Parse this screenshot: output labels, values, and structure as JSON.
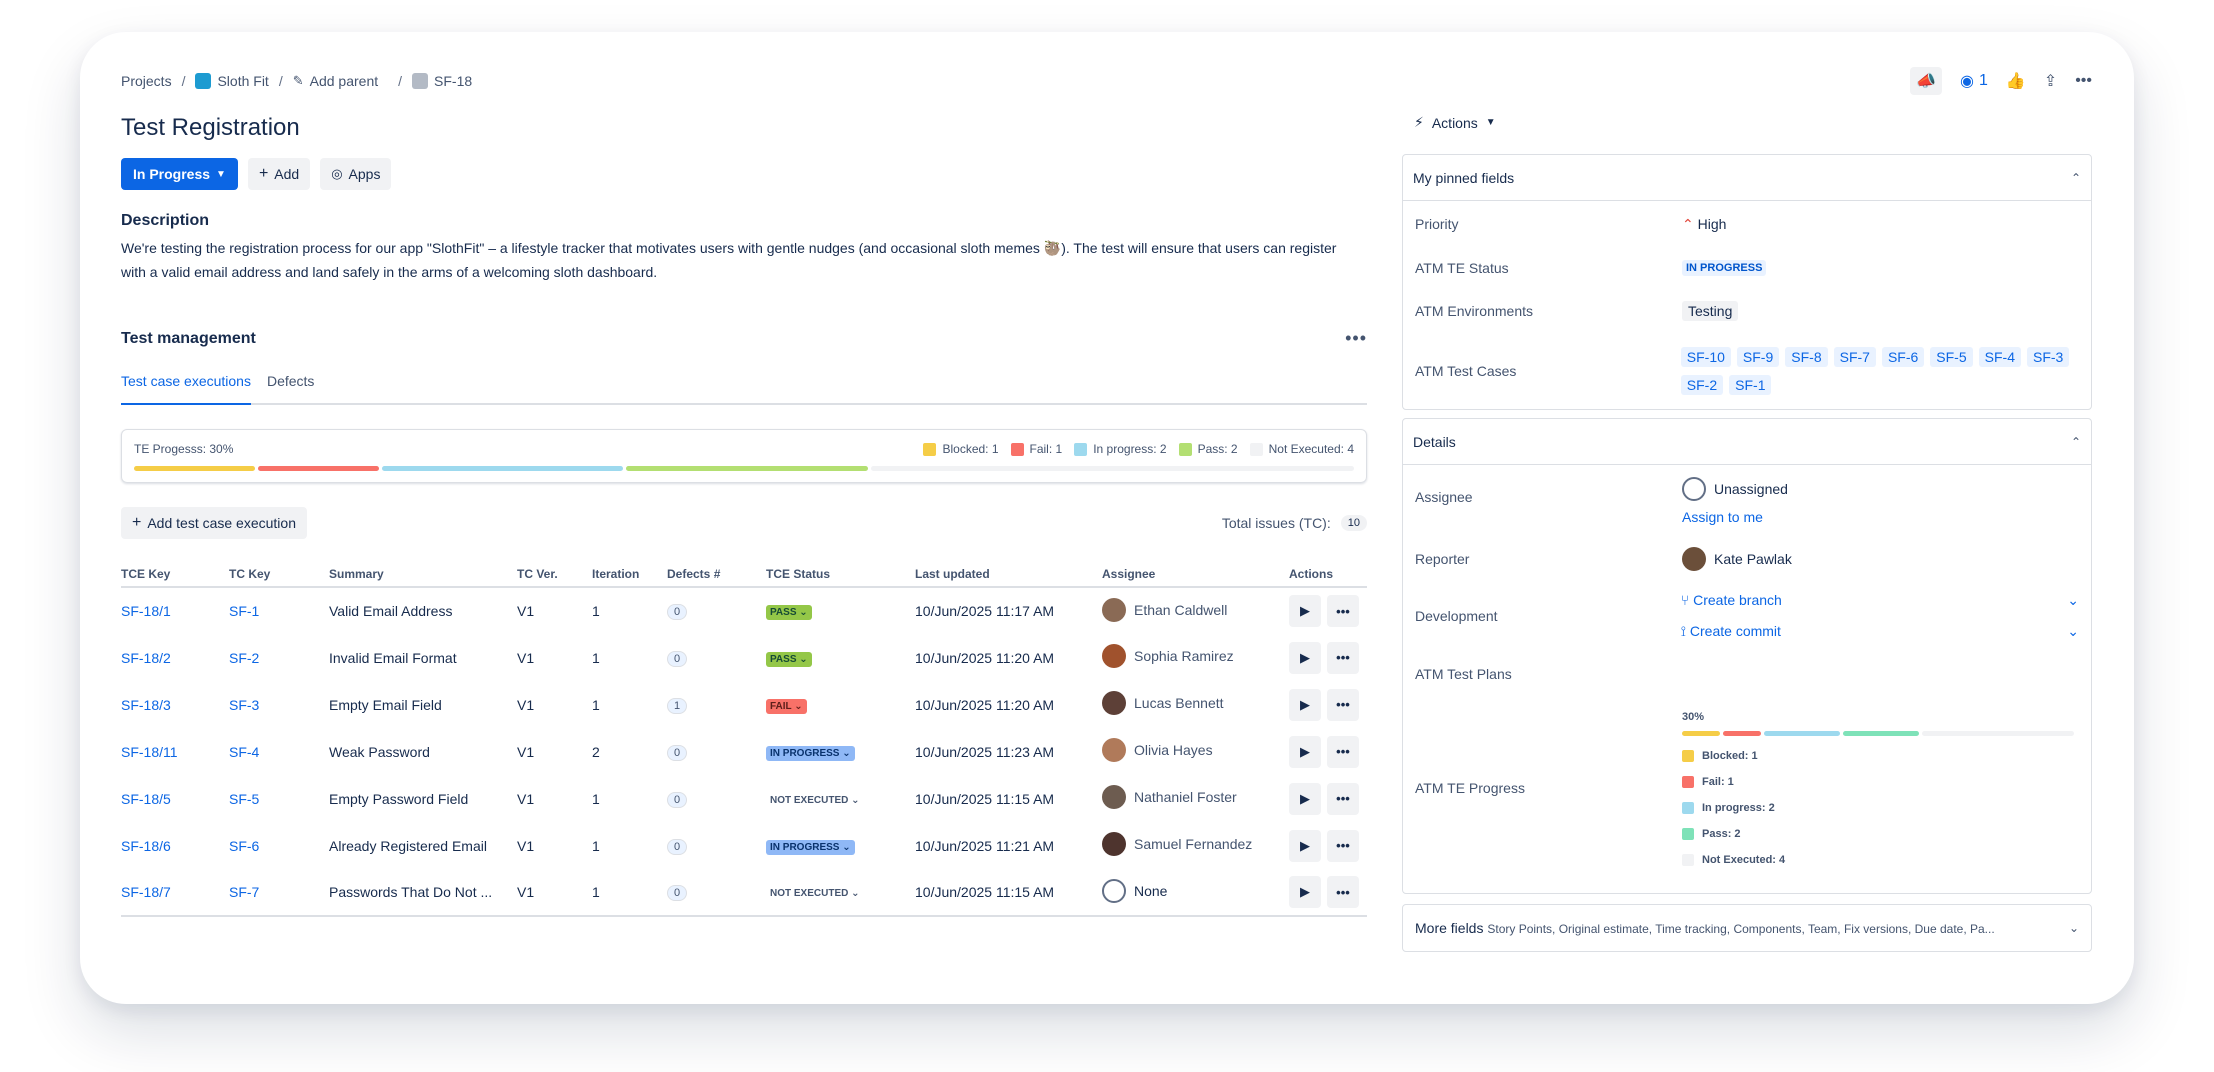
{
  "breadcrumb": {
    "projects": "Projects",
    "project": "Sloth Fit",
    "add_parent": "Add parent",
    "issue": "SF-18"
  },
  "title": "Test Registration",
  "buttons": {
    "status": "In Progress",
    "add": "Add",
    "apps": "Apps"
  },
  "description": {
    "heading": "Description",
    "text": "We're testing the registration process for our app \"SlothFit\" – a lifestyle tracker that motivates users with gentle nudges (and occasional sloth memes 🦥). The test will ensure that users can register with a valid email address and land safely in the arms of a welcoming sloth dashboard."
  },
  "test_management": {
    "title": "Test management",
    "tabs": [
      "Test case executions",
      "Defects"
    ],
    "progress_label": "TE Progesss: 30%",
    "progress_percent": 30,
    "legend": [
      {
        "label": "Blocked: 1",
        "color": "#f5cd47",
        "count": 1
      },
      {
        "label": "Fail: 1",
        "color": "#f87168",
        "count": 1
      },
      {
        "label": "In progress: 2",
        "color": "#9dd9ee",
        "count": 2
      },
      {
        "label": "Pass: 2",
        "color": "#b3df72",
        "count": 2
      },
      {
        "label": "Not Executed: 4",
        "color": "#f1f2f4",
        "count": 4
      }
    ],
    "add_button": "Add test case execution",
    "total_label": "Total issues (TC):",
    "total_count": "10",
    "columns": [
      "TCE Key",
      "TC Key",
      "Summary",
      "TC Ver.",
      "Iteration",
      "Defects #",
      "TCE Status",
      "Last updated",
      "Assignee",
      "Actions"
    ],
    "rows": [
      {
        "tce": "SF-18/1",
        "tc": "SF-1",
        "summary": "Valid Email Address",
        "ver": "V1",
        "iter": "1",
        "defects": "0",
        "status": "PASS",
        "updated": "10/Jun/2025 11:17 AM",
        "assignee": "Ethan Caldwell"
      },
      {
        "tce": "SF-18/2",
        "tc": "SF-2",
        "summary": "Invalid Email Format",
        "ver": "V1",
        "iter": "1",
        "defects": "0",
        "status": "PASS",
        "updated": "10/Jun/2025 11:20 AM",
        "assignee": "Sophia Ramirez"
      },
      {
        "tce": "SF-18/3",
        "tc": "SF-3",
        "summary": "Empty Email Field",
        "ver": "V1",
        "iter": "1",
        "defects": "1",
        "status": "FAIL",
        "updated": "10/Jun/2025 11:20 AM",
        "assignee": "Lucas Bennett"
      },
      {
        "tce": "SF-18/11",
        "tc": "SF-4",
        "summary": "Weak Password",
        "ver": "V1",
        "iter": "2",
        "defects": "0",
        "status": "IN PROGRESS",
        "updated": "10/Jun/2025 11:23 AM",
        "assignee": "Olivia Hayes"
      },
      {
        "tce": "SF-18/5",
        "tc": "SF-5",
        "summary": "Empty Password Field",
        "ver": "V1",
        "iter": "1",
        "defects": "0",
        "status": "NOT EXECUTED",
        "updated": "10/Jun/2025 11:15 AM",
        "assignee": "Nathaniel Foster"
      },
      {
        "tce": "SF-18/6",
        "tc": "SF-6",
        "summary": "Already Registered Email",
        "ver": "V1",
        "iter": "1",
        "defects": "0",
        "status": "IN PROGRESS",
        "updated": "10/Jun/2025 11:21 AM",
        "assignee": "Samuel Fernandez"
      },
      {
        "tce": "SF-18/7",
        "tc": "SF-7",
        "summary": "Passwords That Do Not ...",
        "ver": "V1",
        "iter": "1",
        "defects": "0",
        "status": "NOT EXECUTED",
        "updated": "10/Jun/2025 11:15 AM",
        "assignee": "None"
      }
    ]
  },
  "header_icons": {
    "watch_count": "1"
  },
  "actions_label": "Actions",
  "pinned": {
    "title": "My pinned fields",
    "priority_label": "Priority",
    "priority_value": "High",
    "te_status_label": "ATM TE Status",
    "te_status_value": "IN PROGRESS",
    "env_label": "ATM Environments",
    "env_value": "Testing",
    "test_cases_label": "ATM Test Cases",
    "test_cases": [
      "SF-10",
      "SF-9",
      "SF-8",
      "SF-7",
      "SF-6",
      "SF-5",
      "SF-4",
      "SF-3",
      "SF-2",
      "SF-1"
    ]
  },
  "details": {
    "title": "Details",
    "assignee_label": "Assignee",
    "assignee_value": "Unassigned",
    "assign_to_me": "Assign to me",
    "reporter_label": "Reporter",
    "reporter_value": "Kate Pawlak",
    "development_label": "Development",
    "create_branch": "Create branch",
    "create_commit": "Create commit",
    "test_plans_label": "ATM Test Plans",
    "te_progress_label": "ATM TE Progress",
    "te_progress_pct": "30%",
    "te_legend": [
      {
        "label": "Blocked: 1",
        "color": "#f5cd47"
      },
      {
        "label": "Fail: 1",
        "color": "#f87168"
      },
      {
        "label": "In progress: 2",
        "color": "#9dd9ee"
      },
      {
        "label": "Pass: 2",
        "color": "#7ee2b8"
      },
      {
        "label": "Not Executed: 4",
        "color": "#f1f2f4"
      }
    ]
  },
  "more_fields": {
    "label": "More fields",
    "list": "Story Points, Original estimate, Time tracking, Components, Team, Fix versions, Due date, Pa..."
  }
}
